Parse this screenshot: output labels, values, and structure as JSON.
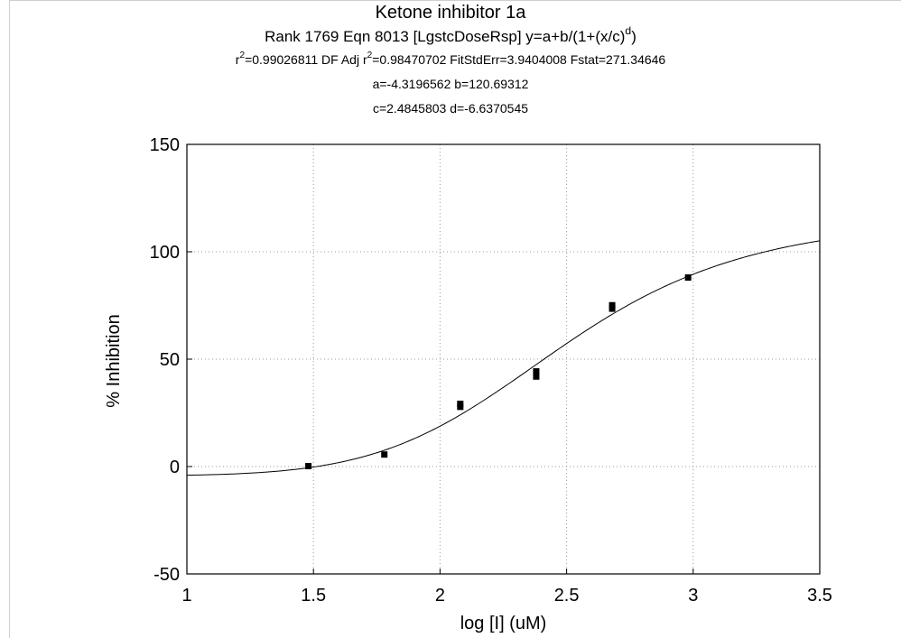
{
  "chart_data": {
    "type": "scatter",
    "title": "Ketone inhibitor 1a",
    "subtitle": {
      "rank_eqn": "Rank 1769  Eqn 8013  [LgstcDoseRsp] y=a+b/(1+(x/c)",
      "rank_eqn_sup": "d",
      "rank_eqn_end": ")",
      "stats_r2_prefix": "r",
      "stats_r2_sup": "2",
      "stats_r2_value": "=0.99026811  DF Adj r",
      "stats_adj_sup": "2",
      "stats_rest": "=0.98470702  FitStdErr=3.9404008  Fstat=271.34646",
      "params_ab": "a=-4.3196562 b=120.69312",
      "params_cd": "c=2.4845803 d=-6.6370545"
    },
    "xlabel": "log [I] (uM)",
    "ylabel": "% Inhibition",
    "xlim": [
      1,
      3.5
    ],
    "ylim": [
      -50,
      150
    ],
    "xticks": [
      "1",
      "1.5",
      "2",
      "2.5",
      "3",
      "3.5"
    ],
    "yticks": [
      "150",
      "100",
      "50",
      "0",
      "-50"
    ],
    "grid": true,
    "fit": {
      "a": -4.3196562,
      "b": 120.69312,
      "c": 2.4845803,
      "d": -6.6370545
    },
    "points": [
      {
        "x": 1.48,
        "y": 0.2
      },
      {
        "x": 1.78,
        "y": 5.6
      },
      {
        "x": 2.08,
        "y": 27.8
      },
      {
        "x": 2.08,
        "y": 29.2
      },
      {
        "x": 2.38,
        "y": 41.9
      },
      {
        "x": 2.38,
        "y": 44.3
      },
      {
        "x": 2.68,
        "y": 73.5
      },
      {
        "x": 2.68,
        "y": 75.1
      },
      {
        "x": 2.98,
        "y": 88.0
      }
    ]
  }
}
